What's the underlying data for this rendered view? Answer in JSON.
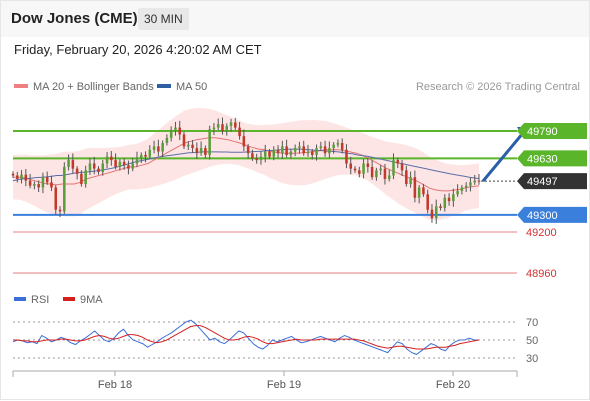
{
  "header": {
    "title": "Dow Jones (CME)",
    "interval": "30 MIN",
    "timestamp": "Friday, February 20, 2026 4:20:02 AM CET"
  },
  "legend": {
    "bollinger": {
      "label": "MA 20 + Bollinger Bands",
      "color": "#f08080"
    },
    "ma50": {
      "label": "MA 50",
      "color": "#2e5fa3"
    }
  },
  "credit": "Research © 2026 Trading Central",
  "chart_data": {
    "type": "candlestick",
    "x_ticks": [
      "Feb 18",
      "Feb 19",
      "Feb 20"
    ],
    "price_ylim": [
      48900,
      49850
    ],
    "current_price": 49497,
    "levels": [
      {
        "value": 49790,
        "label": "49790",
        "kind": "resistance",
        "color": "#5ab52a"
      },
      {
        "value": 49630,
        "label": "49630",
        "kind": "resistance",
        "color": "#5ab52a"
      },
      {
        "value": 49497,
        "label": "49497",
        "kind": "current",
        "color": "#333333"
      },
      {
        "value": 49300,
        "label": "49300",
        "kind": "pivot",
        "color": "#3a7fdb"
      },
      {
        "value": 49200,
        "label": "49200",
        "kind": "support",
        "color": "#d43030"
      },
      {
        "value": 48960,
        "label": "48960",
        "kind": "support",
        "color": "#d43030"
      }
    ],
    "closes": [
      49530,
      49510,
      49535,
      49500,
      49470,
      49480,
      49460,
      49520,
      49490,
      49460,
      49330,
      49320,
      49580,
      49620,
      49570,
      49540,
      49480,
      49560,
      49600,
      49570,
      49550,
      49600,
      49640,
      49620,
      49580,
      49610,
      49590,
      49570,
      49600,
      49630,
      49650,
      49640,
      49680,
      49700,
      49670,
      49720,
      49750,
      49790,
      49810,
      49770,
      49700,
      49710,
      49690,
      49660,
      49690,
      49650,
      49800,
      49810,
      49830,
      49790,
      49820,
      49840,
      49810,
      49760,
      49700,
      49660,
      49630,
      49620,
      49640,
      49670,
      49640,
      49680,
      49660,
      49700,
      49650,
      49670,
      49690,
      49700,
      49660,
      49670,
      49650,
      49690,
      49700,
      49660,
      49690,
      49710,
      49720,
      49680,
      49600,
      49570,
      49560,
      49540,
      49600,
      49580,
      49520,
      49560,
      49570,
      49510,
      49530,
      49620,
      49600,
      49560,
      49480,
      49520,
      49400,
      49460,
      49420,
      49330,
      49280,
      49350,
      49340,
      49400,
      49380,
      49420,
      49440,
      49460,
      49470,
      49490,
      49500,
      49497
    ],
    "ma50": [
      49500,
      49505,
      49510,
      49512,
      49515,
      49518,
      49520,
      49522,
      49525,
      49530,
      49530,
      49535,
      49540,
      49545,
      49548,
      49550,
      49553,
      49556,
      49560,
      49565,
      49570,
      49576,
      49584,
      49592,
      49600,
      49608,
      49614,
      49620,
      49626,
      49632,
      49638,
      49642,
      49646,
      49650,
      49654,
      49658,
      49662,
      49664,
      49666,
      49668,
      49668,
      49668,
      49668,
      49667,
      49667,
      49666,
      49666,
      49666,
      49667,
      49668,
      49670,
      49672,
      49674,
      49676,
      49678,
      49680,
      49682,
      49684,
      49684,
      49684,
      49682,
      49680,
      49678,
      49676,
      49674,
      49672,
      49670,
      49668,
      49664,
      49660,
      49656,
      49650,
      49646,
      49642,
      49636,
      49630,
      49624,
      49618,
      49612,
      49606,
      49600,
      49594,
      49588,
      49582,
      49576,
      49570,
      49564,
      49558,
      49552,
      49546,
      49540,
      49535,
      49530,
      49525,
      49520,
      49516,
      49512
    ],
    "ma20": [
      49520,
      49520,
      49515,
      49505,
      49495,
      49485,
      49480,
      49475,
      49480,
      49480,
      49480,
      49490,
      49510,
      49520,
      49530,
      49540,
      49550,
      49560,
      49570,
      49580,
      49580,
      49590,
      49600,
      49620,
      49640,
      49660,
      49680,
      49700,
      49720,
      49730,
      49740,
      49745,
      49750,
      49750,
      49745,
      49740,
      49730,
      49720,
      49705,
      49695,
      49685,
      49680,
      49670,
      49665,
      49660,
      49660,
      49660,
      49662,
      49665,
      49670,
      49675,
      49680,
      49680,
      49680,
      49675,
      49668,
      49660,
      49648,
      49630,
      49610,
      49590,
      49570,
      49555,
      49540,
      49525,
      49510,
      49495,
      49475,
      49455,
      49445,
      49440,
      49440,
      49445,
      49450,
      49460,
      49465,
      49470
    ],
    "rsi": {
      "ylim": [
        20,
        80
      ],
      "ticks": [
        70,
        50,
        30
      ],
      "series": [
        {
          "name": "RSI",
          "color": "#3a6fd8",
          "values": [
            48,
            50,
            49,
            47,
            48,
            46,
            55,
            52,
            48,
            50,
            53,
            51,
            47,
            45,
            49,
            52,
            56,
            60,
            55,
            50,
            48,
            52,
            58,
            62,
            55,
            50,
            48,
            46,
            42,
            45,
            48,
            52,
            55,
            58,
            62,
            66,
            70,
            72,
            68,
            62,
            56,
            50,
            52,
            48,
            46,
            50,
            55,
            60,
            58,
            52,
            46,
            42,
            40,
            44,
            50,
            48,
            50,
            52,
            54,
            50,
            47,
            48,
            50,
            52,
            54,
            52,
            50,
            48,
            52,
            55,
            53,
            50,
            48,
            46,
            44,
            42,
            40,
            38,
            36,
            42,
            48,
            46,
            40,
            36,
            34,
            38,
            42,
            46,
            44,
            40,
            38,
            44,
            48,
            50,
            50,
            52,
            50,
            50
          ]
        },
        {
          "name": "9MA",
          "color": "#d62020",
          "values": [
            50,
            50,
            49,
            49,
            48,
            48,
            49,
            50,
            50,
            50,
            51,
            51,
            50,
            49,
            49,
            50,
            52,
            54,
            55,
            54,
            52,
            51,
            52,
            54,
            56,
            56,
            55,
            53,
            50,
            48,
            47,
            48,
            50,
            53,
            56,
            59,
            62,
            65,
            66,
            66,
            64,
            61,
            58,
            55,
            52,
            50,
            50,
            51,
            53,
            54,
            53,
            51,
            48,
            46,
            46,
            47,
            48,
            49,
            50,
            51,
            50,
            50,
            50,
            50,
            51,
            51,
            51,
            51,
            51,
            51,
            51,
            51,
            50,
            49,
            47,
            45,
            43,
            42,
            41,
            42,
            43,
            43,
            42,
            41,
            40,
            40,
            40,
            41,
            42,
            42,
            42,
            43,
            44,
            46,
            47,
            48,
            49,
            50
          ]
        }
      ]
    }
  }
}
